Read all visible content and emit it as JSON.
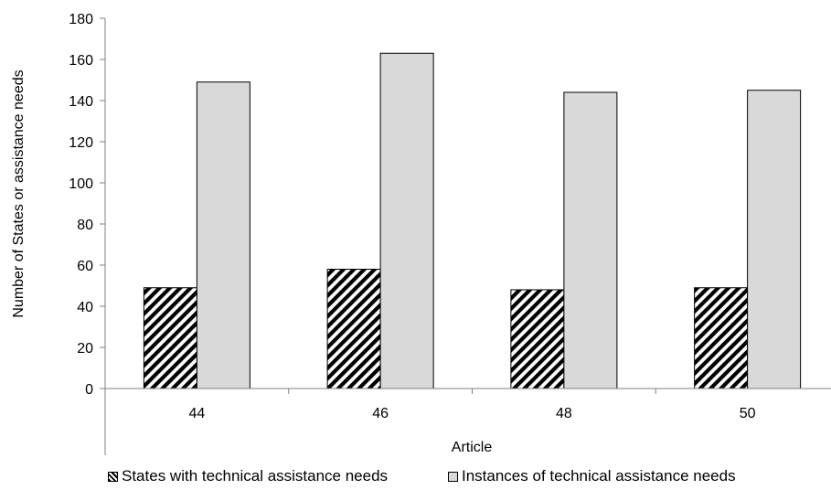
{
  "chart_data": {
    "type": "bar",
    "title": "",
    "xlabel": "Article",
    "ylabel": "Number of States or assistance needs",
    "categories": [
      "44",
      "46",
      "48",
      "50"
    ],
    "ylim": [
      0,
      180
    ],
    "yticks": [
      0,
      20,
      40,
      60,
      80,
      100,
      120,
      140,
      160,
      180
    ],
    "ytick_labels": [
      "0",
      "20",
      "40",
      "60",
      "80",
      "100",
      "120",
      "140",
      "160",
      "180"
    ],
    "grid": false,
    "legend_position": "bottom",
    "series": [
      {
        "name": "States with technical assistance needs",
        "values": [
          49,
          58,
          48,
          49
        ],
        "fill": "diagonal-hatch",
        "color": "#000000"
      },
      {
        "name": "Instances of technical assistance needs",
        "values": [
          149,
          163,
          144,
          145
        ],
        "fill": "solid",
        "color": "#d9d9d9"
      }
    ]
  }
}
